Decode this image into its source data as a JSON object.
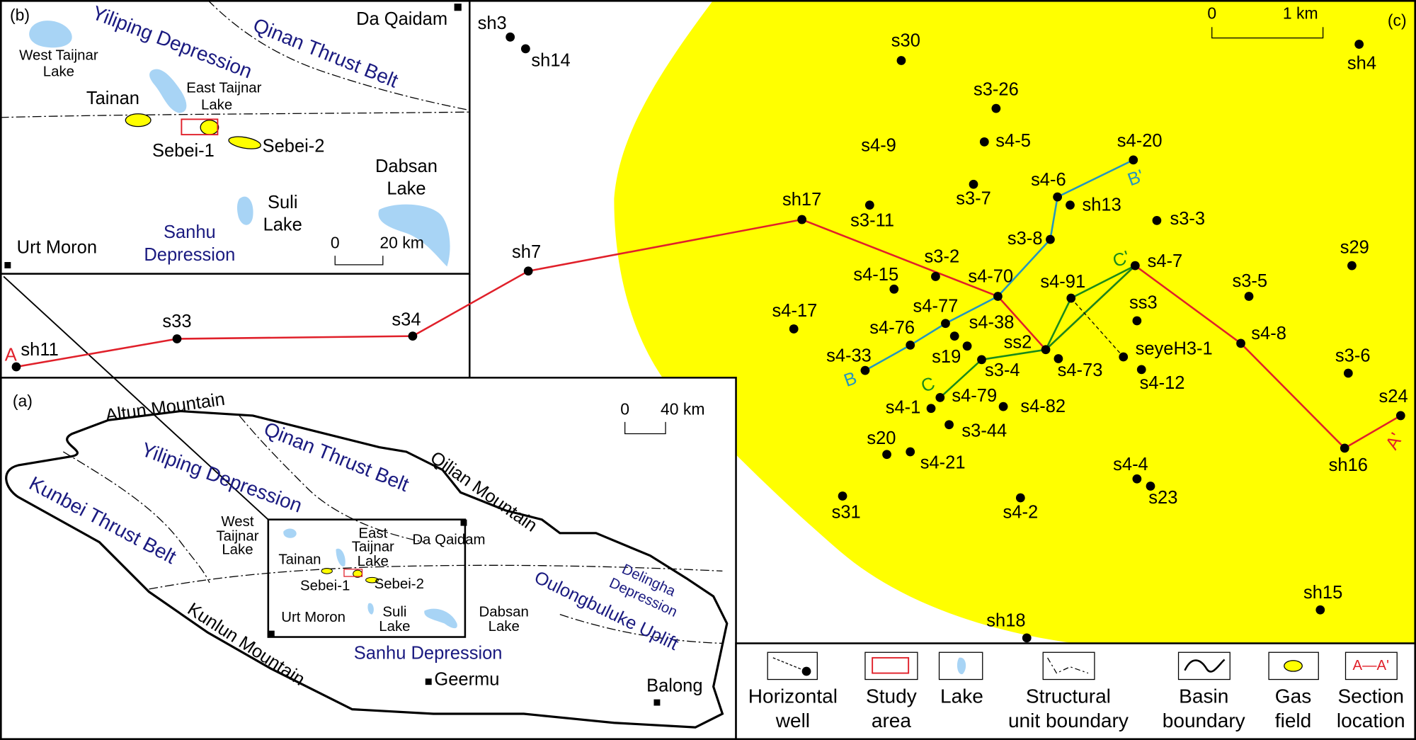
{
  "panel_b": {
    "label": "(b)",
    "yiliping": "Yiliping Depression",
    "qinan": "Qinan Thrust Belt",
    "da_qaidam": "Da Qaidam",
    "west_taijnar": [
      "West Taijnar",
      "Lake"
    ],
    "tainan": "Tainan",
    "east_taijnar": [
      "East Taijnar",
      "Lake"
    ],
    "sebei1": "Sebei-1",
    "sebei2": "Sebei-2",
    "dabsan": [
      "Dabsan",
      "Lake"
    ],
    "suli": [
      "Suli",
      "Lake"
    ],
    "sanhu": [
      "Sanhu",
      "Depression"
    ],
    "urt_moron": "Urt Moron",
    "scale": [
      "0",
      "20 km"
    ]
  },
  "panel_a": {
    "label": "(a)",
    "altun": "Altun Mountain",
    "qinan": "Qinan Thrust Belt",
    "qilian": "Qilian Mountain",
    "yiliping": "Yiliping Depression",
    "kunbei": "Kunbei Thrust Belt",
    "west_taijnar": [
      "West",
      "Taijnar",
      "Lake"
    ],
    "east_taijnar": [
      "East",
      "Taijnar",
      "Lake"
    ],
    "da_qaidam": "Da Qaidam",
    "tainan": "Tainan",
    "sebei1": "Sebei-1",
    "sebei2": "Sebei-2",
    "delingha": [
      "Delingha",
      "Depression"
    ],
    "oulongbuluke": "Oulongbuluke Uplift",
    "urt_moron": "Urt Moron",
    "suli": [
      "Suli",
      "Lake"
    ],
    "dabsan": [
      "Dabsan",
      "Lake"
    ],
    "sanhu": "Sanhu Depression",
    "kunlun": "Kunlun Mountain",
    "geermu": "Geermu",
    "balong": "Balong",
    "scale": [
      "0",
      "40 km"
    ]
  },
  "panel_c": {
    "label": "(c)",
    "scale": [
      "0",
      "1 km"
    ],
    "wells": [
      "sh3",
      "sh14",
      "sh4",
      "s30",
      "s3-26",
      "s4-5",
      "s4-9",
      "s4-20",
      "s3-7",
      "s4-6",
      "sh13",
      "s3-11",
      "sh17",
      "s3-3",
      "s3-8",
      "sh7",
      "s4-7",
      "s29",
      "s3-2",
      "s4-15",
      "s4-70",
      "s4-91",
      "s3-5",
      "ss3",
      "s4-17",
      "s4-77",
      "s4-38",
      "s4-76",
      "s34",
      "s33",
      "s4-8",
      "s19",
      "ss2",
      "seyeH3-1",
      "s3-4",
      "s4-73",
      "sh11",
      "s4-33",
      "s4-12",
      "s3-6",
      "s4-79",
      "s4-1",
      "s4-82",
      "s24",
      "s3-44",
      "s20",
      "s4-21",
      "sh16",
      "s4-4",
      "s23",
      "s31",
      "s4-2",
      "sh15",
      "sh18"
    ],
    "sections": [
      "A",
      "A'",
      "B",
      "B'",
      "C",
      "C'"
    ]
  },
  "legend": [
    {
      "label": [
        "Horizontal",
        "well"
      ]
    },
    {
      "label": [
        "Study",
        "area"
      ]
    },
    {
      "label": [
        "Lake"
      ]
    },
    {
      "label": [
        "Structural",
        "unit boundary"
      ]
    },
    {
      "label": [
        "Basin",
        "boundary"
      ]
    },
    {
      "label": [
        "Gas",
        "field"
      ]
    },
    {
      "label": [
        "Section",
        "location"
      ],
      "icon_text": "A—A'"
    }
  ]
}
